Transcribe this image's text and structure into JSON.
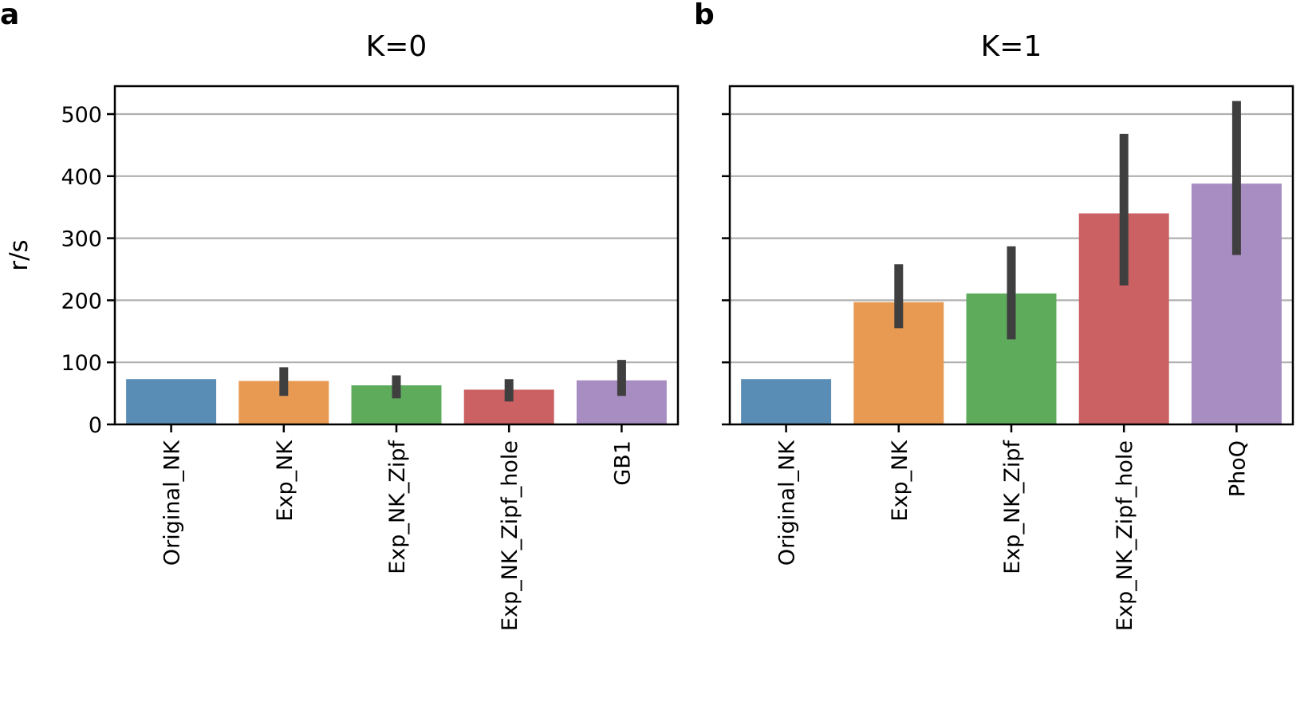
{
  "chart_data": [
    {
      "type": "bar",
      "panel_letter": "a",
      "title": "K=0",
      "ylabel": "r/s",
      "ylim": [
        0,
        545
      ],
      "yticks": [
        0,
        100,
        200,
        300,
        400,
        500
      ],
      "grid": "horizontal",
      "categories": [
        "Original_NK",
        "Exp_NK",
        "Exp_NK_Zipf",
        "Exp_NK_Zipf_hole",
        "GB1"
      ],
      "values": [
        73,
        70,
        63,
        56,
        71
      ],
      "error_low": [
        null,
        46,
        42,
        37,
        46
      ],
      "error_high": [
        null,
        92,
        79,
        73,
        104
      ],
      "colors": [
        "#5a8db5",
        "#e99a52",
        "#5eab5c",
        "#cb6163",
        "#a78dc2"
      ]
    },
    {
      "type": "bar",
      "panel_letter": "b",
      "title": "K=1",
      "ylabel": "",
      "ylim": [
        0,
        545
      ],
      "yticks": [
        0,
        100,
        200,
        300,
        400,
        500
      ],
      "grid": "horizontal",
      "categories": [
        "Original_NK",
        "Exp_NK",
        "Exp_NK_Zipf",
        "Exp_NK_Zipf_hole",
        "PhoQ"
      ],
      "values": [
        73,
        197,
        211,
        340,
        388
      ],
      "error_low": [
        null,
        155,
        137,
        224,
        273
      ],
      "error_high": [
        null,
        258,
        287,
        468,
        521
      ],
      "colors": [
        "#5a8db5",
        "#e99a52",
        "#5eab5c",
        "#cb6163",
        "#a78dc2"
      ]
    }
  ]
}
